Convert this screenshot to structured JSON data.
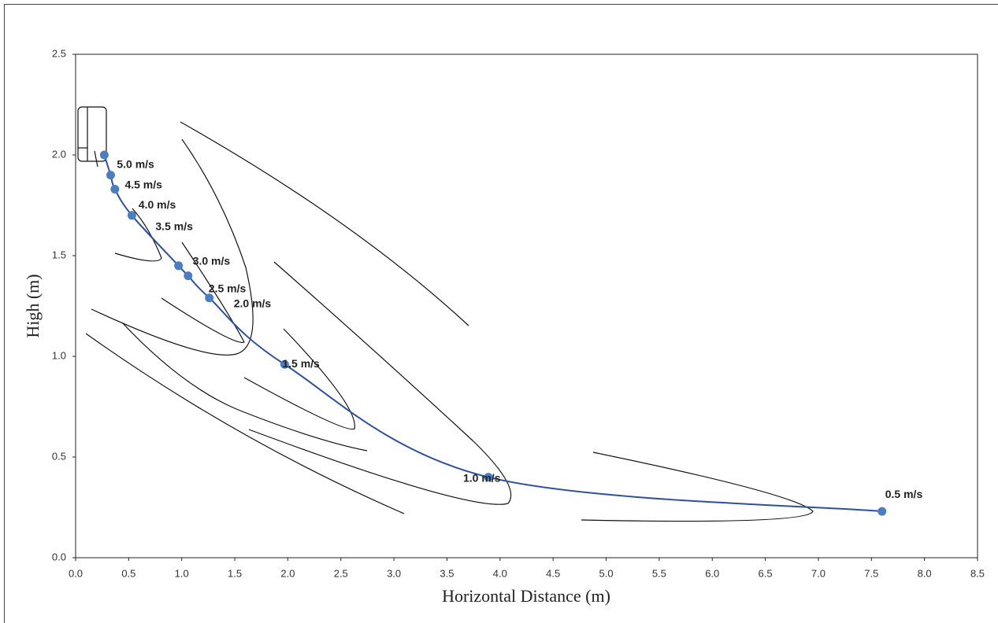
{
  "chart_data": {
    "type": "line",
    "x_label": "Horizontal Distance (m)",
    "y_label": "High (m)",
    "x": [
      0.27,
      0.33,
      0.37,
      0.53,
      0.97,
      1.06,
      1.26,
      1.97,
      3.89,
      7.6
    ],
    "series": [
      {
        "color": "#2e4fa0",
        "marker_color": "#4a7ebf",
        "values": [
          2.0,
          1.9,
          1.83,
          1.7,
          1.45,
          1.4,
          1.29,
          0.96,
          0.4,
          0.23
        ],
        "labels": [
          "5.0 m/s",
          "4.5 m/s",
          "4.0 m/s",
          "3.5 m/s",
          "3.0 m/s",
          "2.5 m/s",
          "2.0 m/s",
          "1.5 m/s",
          "1.0 m/s",
          "0.5 m/s"
        ]
      }
    ],
    "xlim": [
      0,
      8.5
    ],
    "xticks": [
      {
        "value": 0,
        "label": "0.0"
      },
      {
        "value": 0.5,
        "label": "0.5"
      },
      {
        "value": 1,
        "label": "1.0"
      },
      {
        "value": 1.5,
        "label": "1.5"
      },
      {
        "value": 2,
        "label": "2.0"
      },
      {
        "value": 2.5,
        "label": "2.5"
      },
      {
        "value": 3,
        "label": "3.0"
      },
      {
        "value": 3.5,
        "label": "3.5"
      },
      {
        "value": 4,
        "label": "4.0"
      },
      {
        "value": 4.5,
        "label": "4.5"
      },
      {
        "value": 5,
        "label": "5.0"
      },
      {
        "value": 5.5,
        "label": "5.5"
      },
      {
        "value": 6,
        "label": "6.0"
      },
      {
        "value": 6.5,
        "label": "6.5"
      },
      {
        "value": 7,
        "label": "7.0"
      },
      {
        "value": 7.5,
        "label": "7.5"
      },
      {
        "value": 8,
        "label": "8.0"
      },
      {
        "value": 8.5,
        "label": "8.5"
      }
    ],
    "ylim": [
      0,
      2.5
    ],
    "yticks": [
      {
        "value": 0,
        "label": "0.0"
      },
      {
        "value": 0.5,
        "label": "0.5"
      },
      {
        "value": 1,
        "label": "1.0"
      },
      {
        "value": 1.5,
        "label": "1.5"
      },
      {
        "value": 2,
        "label": "2.0"
      },
      {
        "value": 2.5,
        "label": "2.5"
      }
    ]
  }
}
